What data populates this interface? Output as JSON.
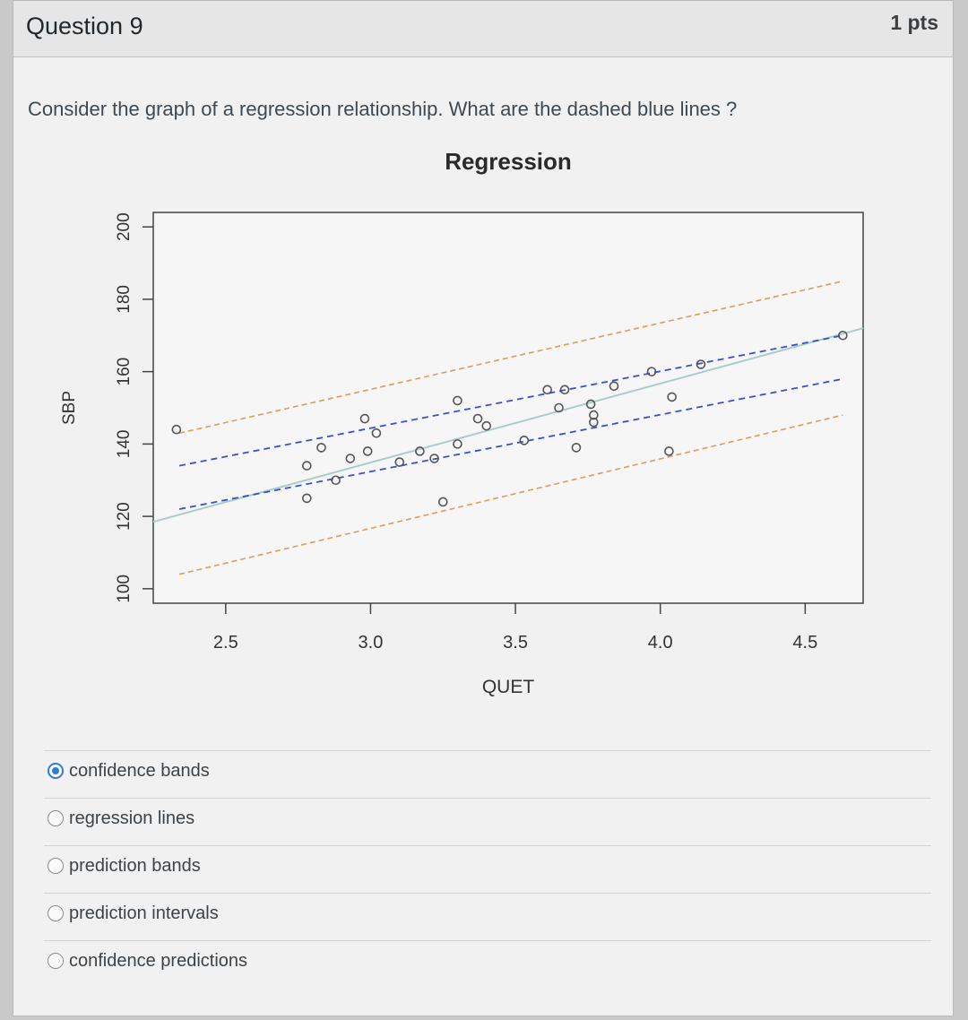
{
  "question": {
    "title": "Question 9",
    "points": "1 pts",
    "prompt": "Consider the graph of a regression relationship. What are the dashed blue lines ?"
  },
  "chart_data": {
    "type": "scatter",
    "title": "Regression",
    "xlabel": "QUET",
    "ylabel": "SBP",
    "xlim": [
      2.25,
      4.7
    ],
    "ylim": [
      96,
      204
    ],
    "xticks": [
      "2.5",
      "3.0",
      "3.5",
      "4.0",
      "4.5"
    ],
    "yticks": [
      "100",
      "120",
      "140",
      "160",
      "180",
      "200"
    ],
    "grid": false,
    "points": {
      "x": [
        2.33,
        2.78,
        2.78,
        2.83,
        2.88,
        2.93,
        2.98,
        2.99,
        3.02,
        3.1,
        3.17,
        3.22,
        3.25,
        3.3,
        3.3,
        3.37,
        3.4,
        3.53,
        3.61,
        3.65,
        3.67,
        3.71,
        3.76,
        3.77,
        3.77,
        3.84,
        3.97,
        4.03,
        4.04,
        4.14,
        4.63
      ],
      "y": [
        144,
        134,
        125,
        139,
        130,
        136,
        147,
        138,
        143,
        135,
        138,
        136,
        124,
        152,
        140,
        147,
        145,
        141,
        155,
        150,
        155,
        139,
        151,
        148,
        146,
        156,
        160,
        138,
        153,
        162,
        170
      ]
    },
    "regression_line": {
      "x": [
        2.25,
        4.7
      ],
      "y": [
        118.5,
        172
      ]
    },
    "confidence_bands": {
      "upper": {
        "x": [
          2.34,
          4.63
        ],
        "y": [
          134,
          170
        ]
      },
      "lower": {
        "x": [
          2.34,
          4.63
        ],
        "y": [
          122,
          158
        ]
      }
    },
    "prediction_bands": {
      "upper": {
        "x": [
          2.34,
          4.63
        ],
        "y": [
          143,
          185
        ]
      },
      "lower": {
        "x": [
          2.34,
          4.63
        ],
        "y": [
          104,
          148
        ]
      }
    },
    "colors": {
      "points": "#555555",
      "regression": "#a9cccb",
      "confidence": "#3a4fd0",
      "prediction": "#e09a5a",
      "axis": "#444444"
    }
  },
  "answers": [
    {
      "label": "confidence bands",
      "selected": true
    },
    {
      "label": "regression lines",
      "selected": false
    },
    {
      "label": "prediction bands",
      "selected": false
    },
    {
      "label": "prediction intervals",
      "selected": false
    },
    {
      "label": "confidence predictions",
      "selected": false
    }
  ]
}
